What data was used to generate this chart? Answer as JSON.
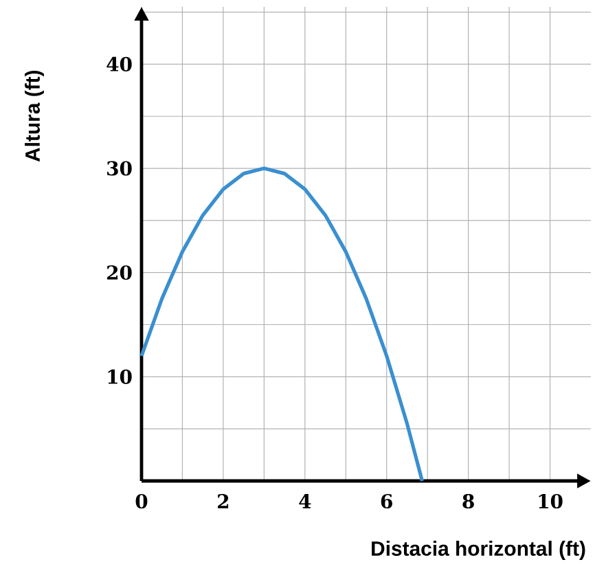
{
  "chart_data": {
    "type": "line",
    "xlabel": "Distacia horizontal (ft)",
    "ylabel": "Altura (ft)",
    "x": [
      0,
      0.5,
      1,
      1.5,
      2,
      2.5,
      3,
      3.5,
      4,
      4.5,
      5,
      5.5,
      6,
      6.5,
      6.87
    ],
    "series": [
      {
        "color": "#3a8fd0",
        "values": [
          12,
          17.5,
          22,
          25.5,
          28,
          29.5,
          30,
          29.5,
          28,
          25.5,
          22,
          17.5,
          12,
          5.5,
          0
        ]
      }
    ],
    "xlim": [
      0,
      11
    ],
    "ylim": [
      0,
      45.5
    ],
    "xticks": [
      0,
      {
        "value": 1,
        "label": null
      },
      2,
      {
        "value": 3,
        "label": null
      },
      4,
      {
        "value": 5,
        "label": null
      },
      6,
      {
        "value": 7,
        "label": null
      },
      8,
      {
        "value": 9,
        "label": null
      },
      10
    ],
    "yticks": [
      {
        "value": 5,
        "label": null
      },
      10,
      {
        "value": 15,
        "label": null
      },
      20,
      {
        "value": 25,
        "label": null
      },
      30,
      {
        "value": 35,
        "label": null
      },
      40,
      {
        "value": 45,
        "label": null
      }
    ],
    "grid": true,
    "marker": "none",
    "line_style": "solid"
  }
}
